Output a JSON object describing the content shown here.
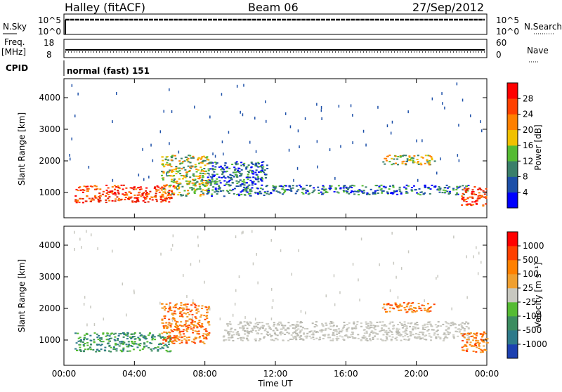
{
  "header": {
    "station": "Halley (fitACF)",
    "beam": "Beam 06",
    "date": "27/Sep/2012"
  },
  "top_panels": {
    "nsky_label": "N.Sky",
    "nsky_ticks": [
      "10^5",
      "10^0"
    ],
    "nsearch_label": "N.Search",
    "nsearch_ticks": [
      "10^5",
      "10^0"
    ],
    "freq_label_1": "Freq.",
    "freq_label_2": "[MHz]",
    "freq_ticks": [
      "18",
      "8"
    ],
    "nave_label": "Nave",
    "nave_ticks": [
      "60",
      "0"
    ],
    "cpid_label": "CPID",
    "cpid_value": "normal (fast) 151"
  },
  "chart_data": [
    {
      "type": "heatmap",
      "panel": "power",
      "ylabel": "Slant Range [km]",
      "yticks": [
        1000,
        2000,
        3000,
        4000
      ],
      "ylim": [
        200,
        4600
      ],
      "xlim": [
        0,
        24
      ],
      "xticks": [
        "00:00",
        "04:00",
        "08:00",
        "12:00",
        "16:00",
        "20:00",
        "00:00"
      ],
      "colorbar": {
        "label": "Power [dB]",
        "ticks": [
          "28",
          "24",
          "20",
          "16",
          "12",
          "8",
          "4"
        ],
        "colors": [
          "#0000ff",
          "#1c4fa8",
          "#3a7f6a",
          "#55bb33",
          "#f0c000",
          "#ff8000",
          "#ff4000",
          "#ff0000"
        ]
      },
      "bands": [
        {
          "t0": 0.6,
          "t1": 6.2,
          "r0": 700,
          "r1": 1250,
          "level": "high"
        },
        {
          "t0": 5.5,
          "t1": 8.2,
          "r0": 900,
          "r1": 2200,
          "level": "mid"
        },
        {
          "t0": 8.0,
          "t1": 11.5,
          "r0": 900,
          "r1": 2000,
          "level": "low"
        },
        {
          "t0": 11.5,
          "t1": 23.0,
          "r0": 950,
          "r1": 1250,
          "level": "low"
        },
        {
          "t0": 18.0,
          "t1": 21.0,
          "r0": 1900,
          "r1": 2200,
          "level": "mid"
        },
        {
          "t0": 22.5,
          "t1": 24.0,
          "r0": 600,
          "r1": 1200,
          "level": "high"
        }
      ]
    },
    {
      "type": "heatmap",
      "panel": "velocity",
      "ylabel": "Slant Range [km]",
      "yticks": [
        1000,
        2000,
        3000,
        4000
      ],
      "ylim": [
        200,
        4600
      ],
      "xlim": [
        0,
        24
      ],
      "xticks": [
        "00:00",
        "04:00",
        "08:00",
        "12:00",
        "16:00",
        "20:00",
        "00:00"
      ],
      "xlabel": "Time UT",
      "colorbar": {
        "label": "Velocity [m s⁻¹]",
        "ticks": [
          "1000",
          "500",
          "100",
          "25",
          "-25",
          "-100",
          "-500",
          "-1000"
        ],
        "colors": [
          "#1c40b0",
          "#2e7a8a",
          "#3c8c60",
          "#55bb33",
          "#c8c8c0",
          "#f0a030",
          "#ff8000",
          "#ff4000",
          "#ff0000"
        ]
      },
      "bands": [
        {
          "t0": 0.6,
          "t1": 6.0,
          "r0": 650,
          "r1": 1250,
          "level": "green"
        },
        {
          "t0": 5.5,
          "t1": 8.2,
          "r0": 900,
          "r1": 2200,
          "level": "orange"
        },
        {
          "t0": 9.0,
          "t1": 23.0,
          "r0": 1000,
          "r1": 1600,
          "level": "grey"
        },
        {
          "t0": 18.0,
          "t1": 21.0,
          "r0": 1900,
          "r1": 2200,
          "level": "orange"
        },
        {
          "t0": 22.5,
          "t1": 24.0,
          "r0": 600,
          "r1": 1300,
          "level": "orange"
        }
      ]
    }
  ]
}
